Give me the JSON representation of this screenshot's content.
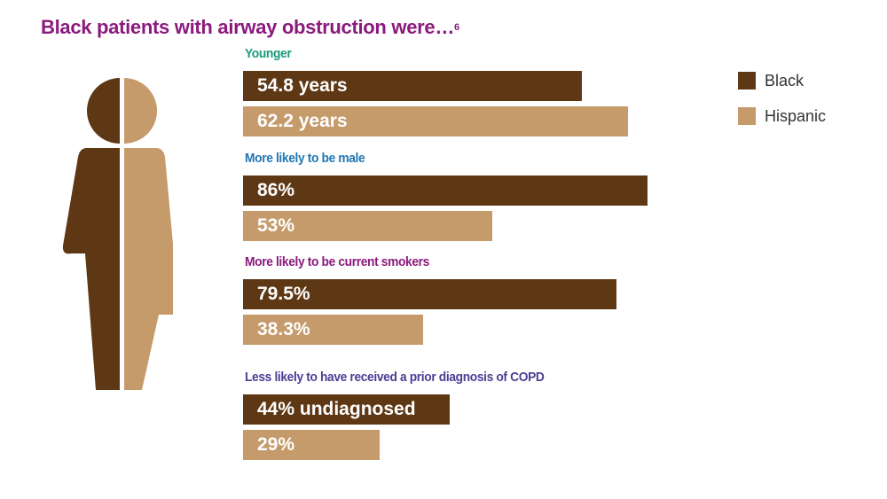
{
  "title": {
    "text": "Black patients with airway obstruction were…",
    "footnote": "6",
    "color": "#8b1a7d"
  },
  "colors": {
    "black": "#5e3815",
    "hispanic": "#c59b6c"
  },
  "legend": [
    {
      "label": "Black",
      "color": "#5e3815"
    },
    {
      "label": "Hispanic",
      "color": "#c59b6c"
    }
  ],
  "chart_data": {
    "type": "bar",
    "orientation": "horizontal",
    "title": "Black patients with airway obstruction were…",
    "series_names": [
      "Black",
      "Hispanic"
    ],
    "groups": [
      {
        "label": "Younger",
        "label_color": "#1a9a7c",
        "scale_max": 76,
        "bars": [
          {
            "series": "Black",
            "value": 54.8,
            "label": "54.8 years"
          },
          {
            "series": "Hispanic",
            "value": 62.2,
            "label": "62.2 years"
          }
        ]
      },
      {
        "label": "More likely to be male",
        "label_color": "#1f76b4",
        "scale_max": 100,
        "bars": [
          {
            "series": "Black",
            "value": 86,
            "label": "86%"
          },
          {
            "series": "Hispanic",
            "value": 53,
            "label": "53%"
          }
        ]
      },
      {
        "label": "More likely to be current smokers",
        "label_color": "#8b1a7d",
        "scale_max": 100,
        "bars": [
          {
            "series": "Black",
            "value": 79.5,
            "label": "79.5%"
          },
          {
            "series": "Hispanic",
            "value": 38.3,
            "label": "38.3%"
          }
        ]
      },
      {
        "label": "Less likely to have received a prior diagnosis of COPD",
        "label_color": "#4b3f94",
        "scale_max": 100,
        "bars": [
          {
            "series": "Black",
            "value": 44,
            "label": "44% undiagnosed"
          },
          {
            "series": "Hispanic",
            "value": 29,
            "label": "29%"
          }
        ]
      }
    ]
  }
}
